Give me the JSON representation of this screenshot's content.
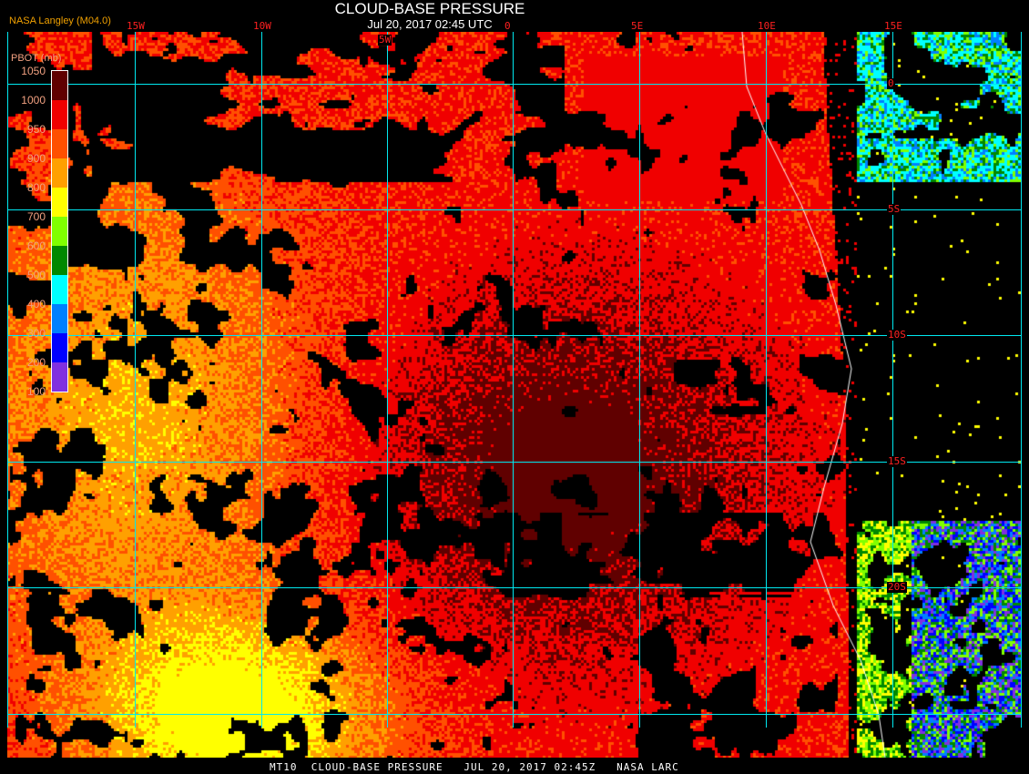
{
  "header": {
    "title": "CLOUD-BASE PRESSURE",
    "datetime": "Jul 20, 2017 02:45 UTC",
    "source": "NASA Langley (M04.0)"
  },
  "map": {
    "longitude_labels": [
      "15W",
      "10W",
      "5W",
      "0",
      "5E",
      "10E",
      "15E"
    ],
    "latitude_labels": [
      "0",
      "5S",
      "10S",
      "15S",
      "20S"
    ],
    "grid_color": "#00e8f0",
    "label_color": "#ff2020"
  },
  "legend": {
    "title": "PBOT (mb)",
    "ticks": [
      "1050",
      "1000",
      "950",
      "900",
      "800",
      "700",
      "600",
      "500",
      "400",
      "300",
      "200",
      "100"
    ],
    "colors": [
      "#600000",
      "#f00000",
      "#ff5000",
      "#ffa000",
      "#ffff00",
      "#80ff00",
      "#008800",
      "#00ffff",
      "#0080ff",
      "#0000ff",
      "#8030e0"
    ]
  },
  "footer": "MT10  CLOUD-BASE PRESSURE   JUL 20, 2017 02:45Z   NASA LARC"
}
